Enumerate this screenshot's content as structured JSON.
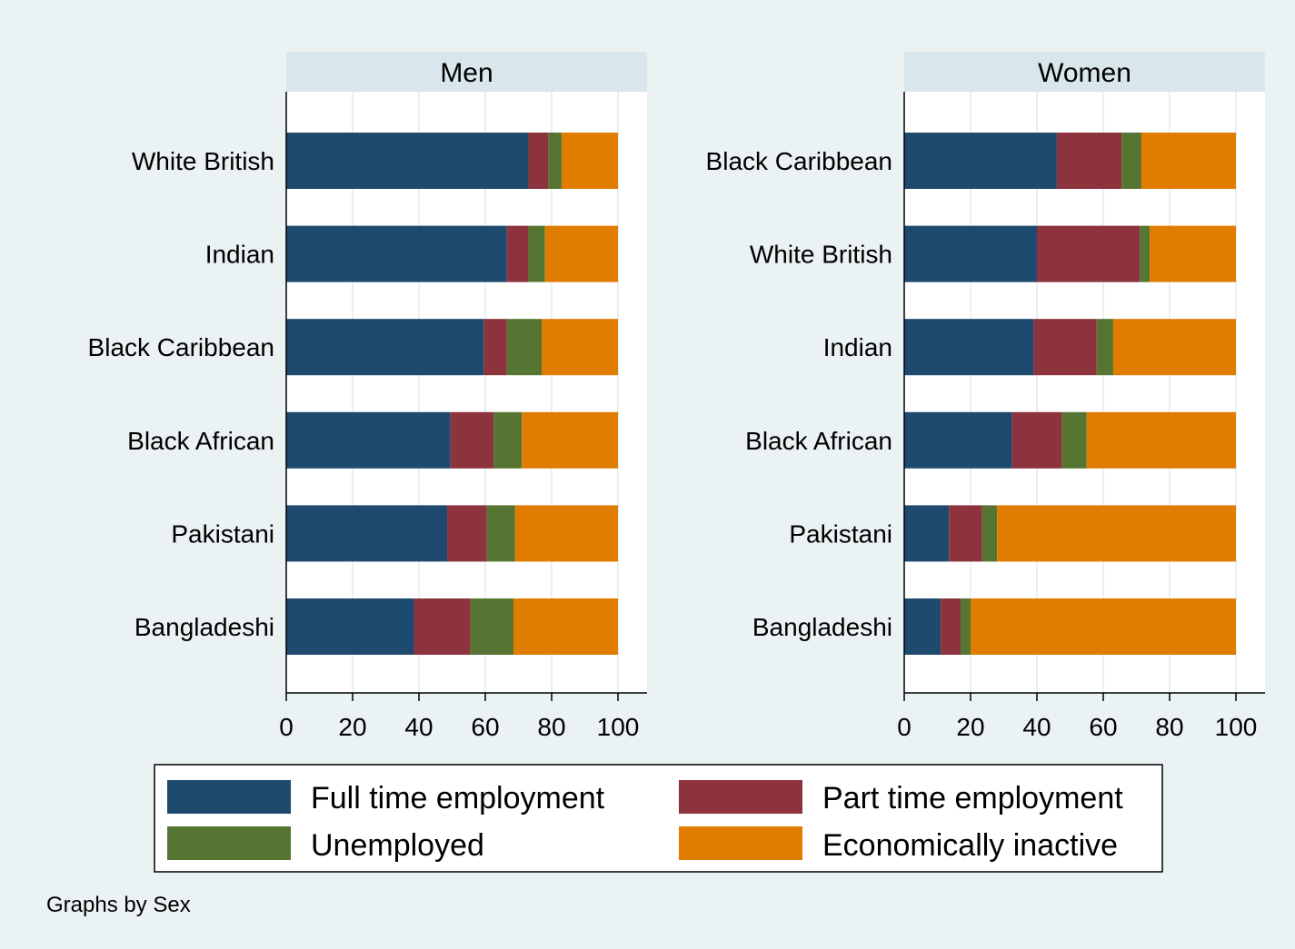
{
  "chart_data": {
    "type": "bar",
    "orientation": "horizontal",
    "stacked": true,
    "note": "Graphs by Sex",
    "xlim": [
      0,
      100
    ],
    "xticks": [
      0,
      20,
      40,
      60,
      80,
      100
    ],
    "grid": true,
    "legend": {
      "position": "bottom",
      "columns": 2,
      "entries": [
        "Full time employment",
        "Part time employment",
        "Unemployed",
        "Economically inactive"
      ]
    },
    "colors": {
      "Full time employment": "#1f4a70",
      "Part time employment": "#8d333d",
      "Unemployed": "#577532",
      "Economically inactive": "#e07d00",
      "plot_background": "#ffffff",
      "outer_background": "#eaf2f3",
      "panel_header": "#d9e6eb",
      "grid": "#e2ebee"
    },
    "panels": [
      {
        "title": "Men",
        "categories": [
          "White British",
          "Indian",
          "Black Caribbean",
          "Black African",
          "Pakistani",
          "Bangladeshi"
        ],
        "series": [
          {
            "name": "Full time employment",
            "values": [
              73,
              66.5,
              59.5,
              49.5,
              48.5,
              38.5
            ]
          },
          {
            "name": "Part time employment",
            "values": [
              6,
              6.5,
              7,
              13,
              12,
              17
            ]
          },
          {
            "name": "Unemployed",
            "values": [
              4,
              5,
              10.5,
              8.5,
              8.5,
              13
            ]
          },
          {
            "name": "Economically inactive",
            "values": [
              17,
              22,
              23,
              29,
              31,
              31.5
            ]
          }
        ]
      },
      {
        "title": "Women",
        "categories": [
          "Black Caribbean",
          "White British",
          "Indian",
          "Black African",
          "Pakistani",
          "Bangladeshi"
        ],
        "series": [
          {
            "name": "Full time employment",
            "values": [
              46,
              40,
              39,
              32.5,
              13.5,
              11
            ]
          },
          {
            "name": "Part time employment",
            "values": [
              19.5,
              31,
              19,
              15,
              10,
              6
            ]
          },
          {
            "name": "Unemployed",
            "values": [
              6,
              3,
              5,
              7.5,
              4.5,
              3
            ]
          },
          {
            "name": "Economically inactive",
            "values": [
              28.5,
              26,
              37,
              45,
              72,
              80
            ]
          }
        ]
      }
    ]
  }
}
